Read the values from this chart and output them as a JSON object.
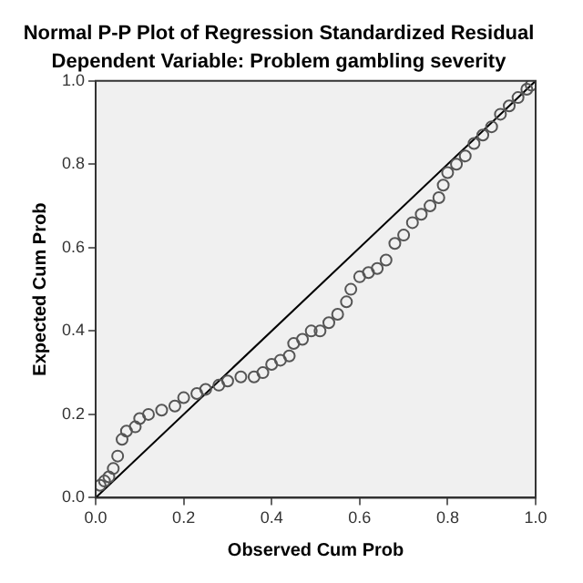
{
  "chart_data": {
    "type": "scatter",
    "title": "Normal P-P Plot of Regression Standardized Residual",
    "subtitle": "Dependent Variable: Problem gambling severity",
    "xlabel": "Observed Cum Prob",
    "ylabel": "Expected Cum Prob",
    "xlim": [
      0,
      1
    ],
    "ylim": [
      0,
      1
    ],
    "xticks": [
      {
        "value": 0,
        "label": "0.0"
      },
      0.2,
      0.4,
      0.6,
      0.8,
      {
        "value": 1,
        "label": "1.0"
      }
    ],
    "yticks": [
      {
        "value": 0,
        "label": "0.0"
      },
      0.2,
      0.4,
      0.6,
      0.8,
      {
        "value": 1,
        "label": "1.0"
      }
    ],
    "grid": false,
    "legend": false,
    "marker": "circle",
    "series": [
      {
        "type": "scatter",
        "color": "#555555",
        "x": [
          0.01,
          0.02,
          0.03,
          0.04,
          0.05,
          0.06,
          0.07,
          0.09,
          0.1,
          0.12,
          0.15,
          0.18,
          0.2,
          0.23,
          0.25,
          0.28,
          0.3,
          0.33,
          0.36,
          0.38,
          0.4,
          0.42,
          0.44,
          0.45,
          0.47,
          0.49,
          0.51,
          0.53,
          0.55,
          0.57,
          0.58,
          0.6,
          0.62,
          0.64,
          0.66,
          0.68,
          0.7,
          0.72,
          0.74,
          0.76,
          0.78,
          0.79,
          0.8,
          0.82,
          0.84,
          0.86,
          0.88,
          0.9,
          0.92,
          0.94,
          0.96,
          0.98,
          0.99
        ],
        "values": [
          0.03,
          0.04,
          0.05,
          0.07,
          0.1,
          0.14,
          0.16,
          0.17,
          0.19,
          0.2,
          0.21,
          0.22,
          0.24,
          0.25,
          0.26,
          0.27,
          0.28,
          0.29,
          0.29,
          0.3,
          0.32,
          0.33,
          0.34,
          0.37,
          0.38,
          0.4,
          0.4,
          0.42,
          0.44,
          0.47,
          0.5,
          0.53,
          0.54,
          0.55,
          0.57,
          0.61,
          0.63,
          0.66,
          0.68,
          0.7,
          0.72,
          0.75,
          0.78,
          0.8,
          0.82,
          0.85,
          0.87,
          0.89,
          0.92,
          0.94,
          0.96,
          0.98,
          0.99
        ]
      },
      {
        "type": "line",
        "color": "#000000",
        "x": [
          0,
          1
        ],
        "values": [
          0,
          1
        ],
        "marker": "none"
      }
    ]
  }
}
